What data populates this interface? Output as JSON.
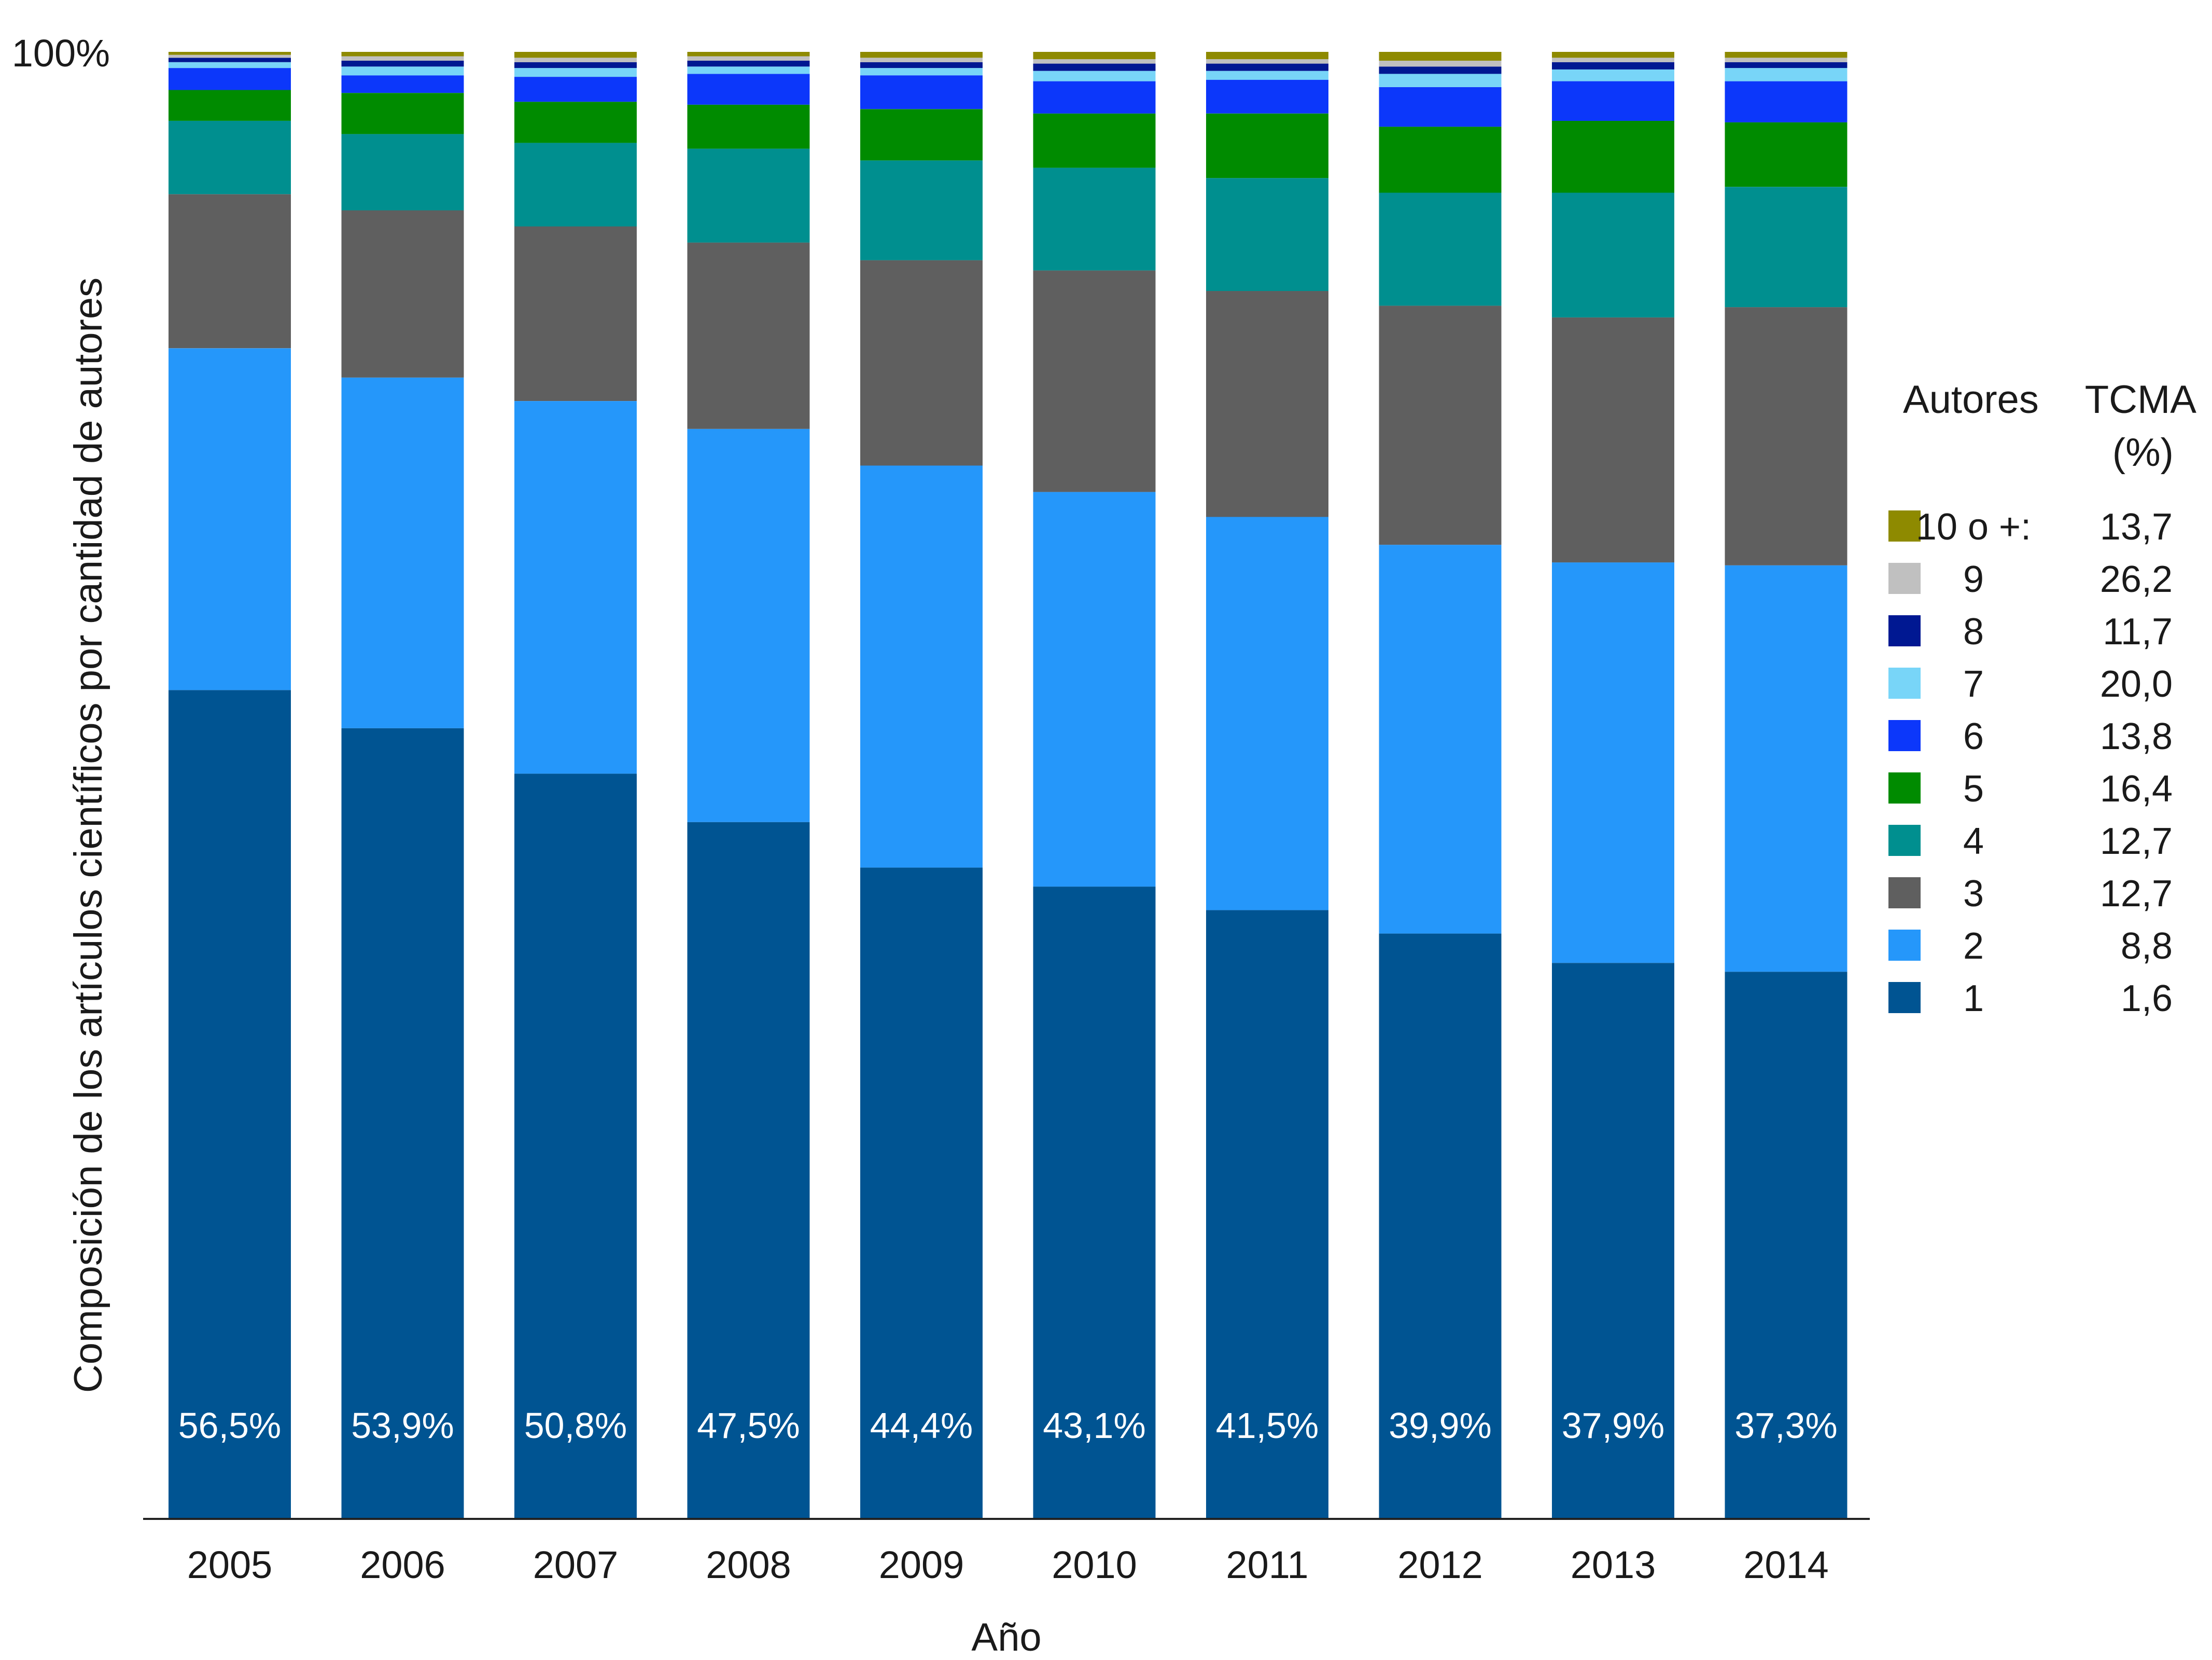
{
  "chart_data": {
    "type": "bar",
    "stacked": true,
    "normalized": true,
    "categories": [
      "2005",
      "2006",
      "2007",
      "2008",
      "2009",
      "2010",
      "2011",
      "2012",
      "2013",
      "2014"
    ],
    "xlabel": "Año",
    "ylabel": "Composición de los artículos científicos por cantidad de autores",
    "y_top_label": "100%",
    "ylim": [
      0,
      100
    ],
    "grid": false,
    "legend": {
      "placement": "right",
      "header_autores": "Autores",
      "header_tcma_1": "TCMA",
      "header_tcma_2": "(%)",
      "entries": [
        {
          "label": "10 o +:",
          "tcma": "13,7"
        },
        {
          "label": "9",
          "tcma": "26,2"
        },
        {
          "label": "8",
          "tcma": "11,7"
        },
        {
          "label": "7",
          "tcma": "20,0"
        },
        {
          "label": "6",
          "tcma": "13,8"
        },
        {
          "label": "5",
          "tcma": "16,4"
        },
        {
          "label": "4",
          "tcma": "12,7"
        },
        {
          "label": "3",
          "tcma": "12,7"
        },
        {
          "label": "2",
          "tcma": "8,8"
        },
        {
          "label": "1",
          "tcma": "1,6"
        }
      ]
    },
    "series": [
      {
        "name": "1",
        "color": "#005492",
        "values": [
          56.5,
          53.9,
          50.8,
          47.5,
          44.4,
          43.1,
          41.5,
          39.9,
          37.9,
          37.3
        ],
        "labels": [
          "56,5%",
          "53,9%",
          "50,8%",
          "47,5%",
          "44,4%",
          "43,1%",
          "41,5%",
          "39,9%",
          "37,9%",
          "37,3%"
        ]
      },
      {
        "name": "2",
        "color": "#2597fa",
        "values": [
          23.3,
          23.9,
          25.4,
          26.8,
          27.4,
          26.9,
          26.8,
          26.5,
          27.3,
          27.7
        ]
      },
      {
        "name": "3",
        "color": "#5f5f5f",
        "values": [
          10.5,
          11.4,
          11.9,
          12.7,
          14.0,
          15.1,
          15.4,
          16.3,
          16.7,
          17.6
        ]
      },
      {
        "name": "4",
        "color": "#008f8f",
        "values": [
          5.0,
          5.2,
          5.7,
          6.4,
          6.8,
          7.0,
          7.7,
          7.7,
          8.5,
          8.2
        ]
      },
      {
        "name": "5",
        "color": "#008b00",
        "values": [
          2.1,
          2.8,
          2.8,
          3.0,
          3.5,
          3.7,
          4.4,
          4.5,
          4.9,
          4.4
        ]
      },
      {
        "name": "6",
        "color": "#0c37fa",
        "values": [
          1.5,
          1.2,
          1.7,
          2.1,
          2.3,
          2.2,
          2.3,
          2.7,
          2.7,
          2.8
        ]
      },
      {
        "name": "7",
        "color": "#78d5f8",
        "values": [
          0.4,
          0.6,
          0.6,
          0.5,
          0.5,
          0.7,
          0.6,
          0.9,
          0.8,
          0.9
        ]
      },
      {
        "name": "8",
        "color": "#001892",
        "values": [
          0.3,
          0.4,
          0.4,
          0.4,
          0.4,
          0.5,
          0.5,
          0.5,
          0.5,
          0.4
        ]
      },
      {
        "name": "9",
        "color": "#c0c0c0",
        "values": [
          0.2,
          0.3,
          0.3,
          0.3,
          0.3,
          0.3,
          0.3,
          0.4,
          0.3,
          0.3
        ]
      },
      {
        "name": "10 o +:",
        "color": "#8e8a00",
        "values": [
          0.2,
          0.3,
          0.4,
          0.3,
          0.4,
          0.5,
          0.5,
          0.6,
          0.4,
          0.4
        ]
      }
    ]
  }
}
